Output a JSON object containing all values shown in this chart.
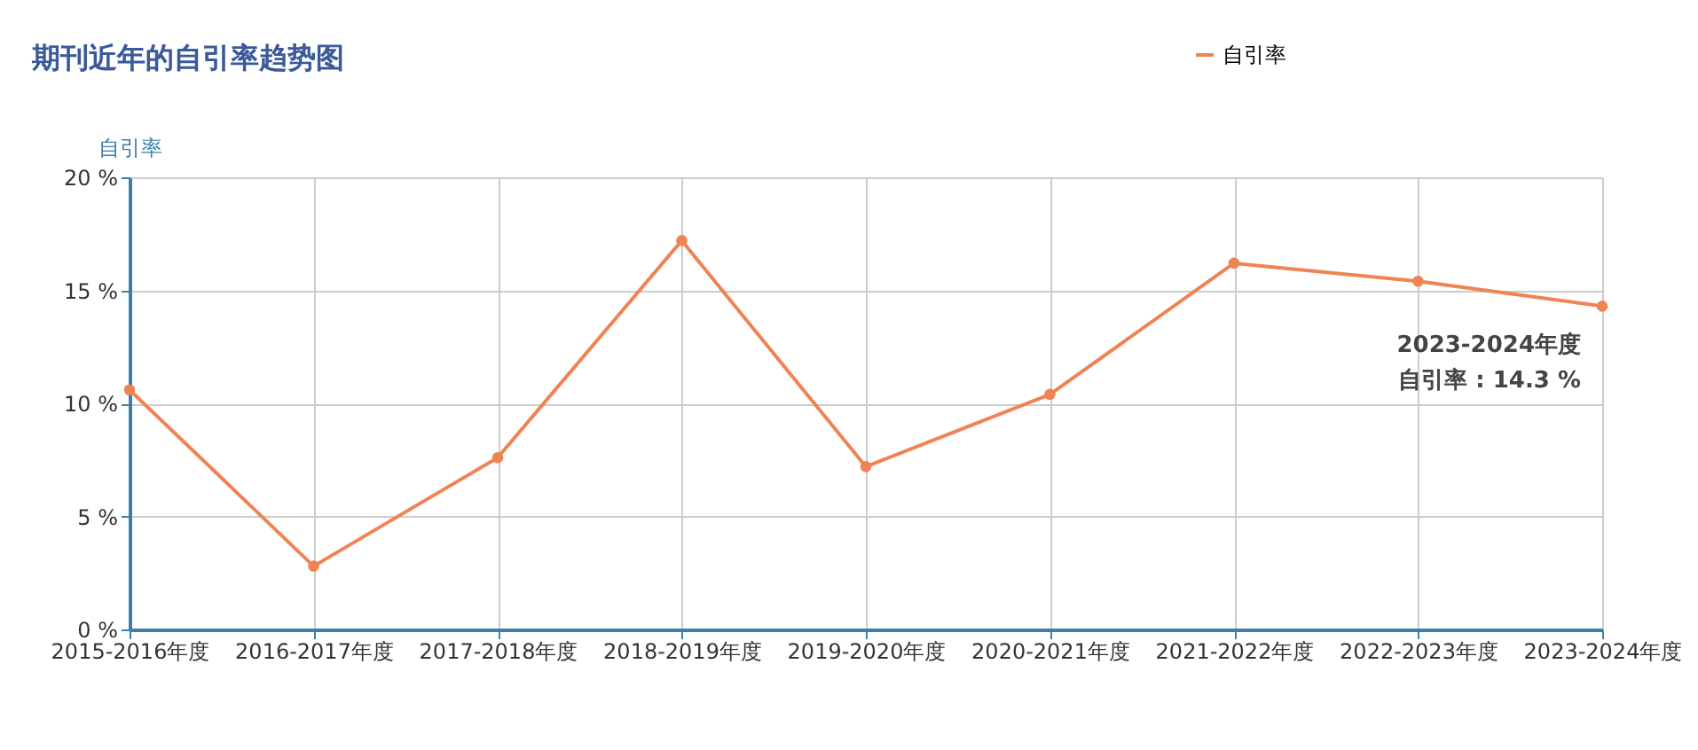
{
  "chart_data": {
    "type": "line",
    "title": "期刊近年的自引率趋势图",
    "ylabel": "自引率",
    "categories": [
      "2015-2016年度",
      "2016-2017年度",
      "2017-2018年度",
      "2018-2019年度",
      "2019-2020年度",
      "2020-2021年度",
      "2021-2022年度",
      "2022-2023年度",
      "2023-2024年度"
    ],
    "series": [
      {
        "name": "自引率",
        "color": "#ef8354",
        "values": [
          10.6,
          2.8,
          7.6,
          17.2,
          7.2,
          10.4,
          16.2,
          15.4,
          14.3
        ]
      }
    ],
    "ylim": [
      0,
      20
    ],
    "yticks": [
      {
        "value": 0,
        "label": "0 %"
      },
      {
        "value": 5,
        "label": "5 %"
      },
      {
        "value": 10,
        "label": "10 %"
      },
      {
        "value": 15,
        "label": "15 %"
      },
      {
        "value": 20,
        "label": "20 %"
      }
    ],
    "grid": true,
    "legend": "top right",
    "marker": "circle",
    "line_style": "solid",
    "annotations": [
      {
        "text": "2023-2024年度",
        "x": "2023-2024年度",
        "y": 14.3
      },
      {
        "text": "自引率 : 14.3 %",
        "x": "2023-2024年度",
        "y": 14.3
      }
    ]
  }
}
